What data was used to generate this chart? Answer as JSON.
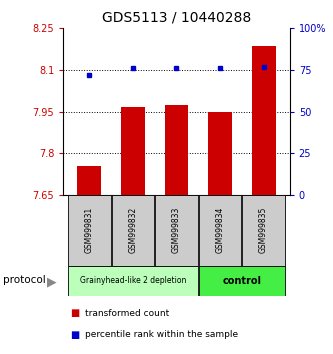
{
  "title": "GDS5113 / 10440288",
  "samples": [
    "GSM999831",
    "GSM999832",
    "GSM999833",
    "GSM999834",
    "GSM999835"
  ],
  "bar_values": [
    7.755,
    7.965,
    7.975,
    7.95,
    8.185
  ],
  "percentile_values": [
    72,
    76,
    76,
    76,
    77
  ],
  "bar_color": "#cc0000",
  "dot_color": "#0000cc",
  "ylim_left": [
    7.65,
    8.25
  ],
  "ylim_right": [
    0,
    100
  ],
  "yticks_left": [
    7.65,
    7.8,
    7.95,
    8.1,
    8.25
  ],
  "ytick_labels_left": [
    "7.65",
    "7.8",
    "7.95",
    "8.1",
    "8.25"
  ],
  "yticks_right": [
    0,
    25,
    50,
    75,
    100
  ],
  "ytick_labels_right": [
    "0",
    "25",
    "50",
    "75",
    "100%"
  ],
  "hlines": [
    8.1,
    7.95,
    7.8
  ],
  "group1_samples": [
    0,
    1,
    2
  ],
  "group2_samples": [
    3,
    4
  ],
  "group1_label": "Grainyhead-like 2 depletion",
  "group2_label": "control",
  "group1_color": "#bbffbb",
  "group2_color": "#44ee44",
  "protocol_label": "protocol",
  "legend_bar_label": "transformed count",
  "legend_dot_label": "percentile rank within the sample",
  "box_color": "#cccccc",
  "title_fontsize": 10,
  "bar_width": 0.55
}
